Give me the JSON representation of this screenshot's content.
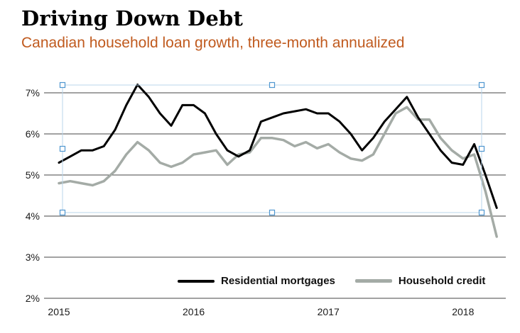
{
  "header": {
    "title": "Driving Down Debt",
    "subtitle": "Canadian household loan growth, three-month annualized"
  },
  "colors": {
    "title": "#000000",
    "subtitle": "#c05a1e",
    "residential_line": "#000000",
    "household_line": "#a4aba6",
    "gridline": "#444444",
    "tick_label": "#1a1a1a",
    "selection_line": "#b9d5eb",
    "selection_handle_border": "#4f97d0",
    "background": "#ffffff"
  },
  "selection_overlay": {
    "visible": true,
    "handle_count": 8
  },
  "legend": {
    "items": [
      {
        "label": "Residential mortgages",
        "swatch": "black-line-swatch"
      },
      {
        "label": "Household credit",
        "swatch": "gray-line-swatch"
      }
    ]
  },
  "chart_data": {
    "type": "line",
    "title": "Driving Down Debt",
    "subtitle": "Canadian household loan growth, three-month annualized",
    "x_unit": "month",
    "x_start": "2015-01",
    "x_tick_labels": [
      "2015",
      "2016",
      "2017",
      "2018"
    ],
    "y_tick_labels": [
      "2%",
      "3%",
      "4%",
      "5%",
      "6%",
      "7%"
    ],
    "ylim": [
      2,
      7
    ],
    "grid": "horizontal",
    "legend_position": "bottom-inside",
    "series": [
      {
        "name": "Residential mortgages",
        "color": "#000000",
        "values": [
          5.3,
          5.45,
          5.6,
          5.6,
          5.7,
          6.1,
          6.7,
          7.2,
          6.9,
          6.5,
          6.2,
          6.7,
          6.7,
          6.5,
          6.0,
          5.6,
          5.45,
          5.6,
          6.3,
          6.4,
          6.5,
          6.55,
          6.6,
          6.5,
          6.5,
          6.3,
          6.0,
          5.6,
          5.9,
          6.3,
          6.6,
          6.9,
          6.4,
          6.0,
          5.6,
          5.3,
          5.25,
          5.75,
          5.0,
          4.2
        ]
      },
      {
        "name": "Household credit",
        "color": "#a4aba6",
        "values": [
          4.8,
          4.85,
          4.8,
          4.75,
          4.85,
          5.1,
          5.5,
          5.8,
          5.6,
          5.3,
          5.2,
          5.3,
          5.5,
          5.55,
          5.6,
          5.25,
          5.5,
          5.55,
          5.9,
          5.9,
          5.85,
          5.7,
          5.8,
          5.65,
          5.75,
          5.55,
          5.4,
          5.35,
          5.5,
          6.0,
          6.5,
          6.65,
          6.35,
          6.35,
          5.9,
          5.6,
          5.4,
          5.5,
          4.6,
          3.5
        ]
      }
    ]
  }
}
